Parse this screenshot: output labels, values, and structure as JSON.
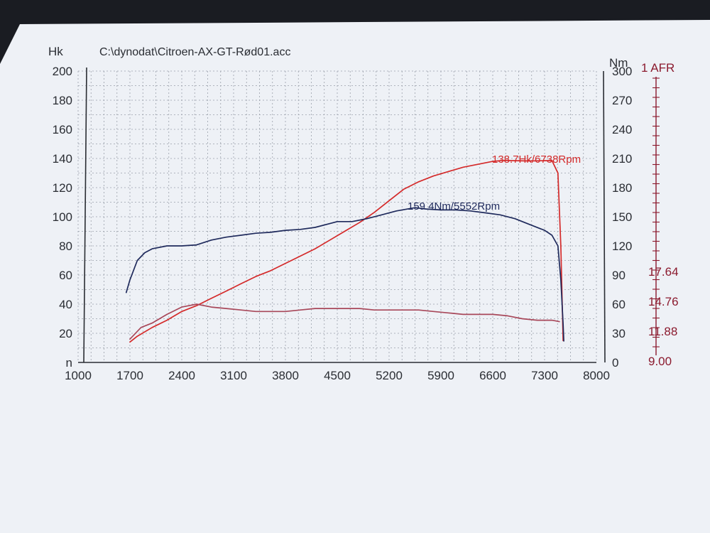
{
  "chart_data": {
    "type": "line",
    "title": "C:\\dynodat\\Citroen-AX-GT-Rød01.acc",
    "x": {
      "min": 1000,
      "max": 8000,
      "ticks": [
        1000,
        1700,
        2400,
        3100,
        3800,
        4500,
        5200,
        5900,
        6600,
        7300,
        8000
      ],
      "tick_labels": [
        "1000",
        "1700",
        "2400",
        "3100",
        "3800",
        "4500",
        "5200",
        "5900",
        "6600",
        "7300",
        "8000"
      ]
    },
    "y_left": {
      "label": "Hk",
      "min": 0,
      "max": 200,
      "ticks": [
        0,
        20,
        40,
        60,
        80,
        100,
        120,
        140,
        160,
        180,
        200
      ],
      "tick_labels": [
        "n",
        "20",
        "40",
        "60",
        "80",
        "100",
        "120",
        "140",
        "160",
        "180",
        "200"
      ]
    },
    "y_right": {
      "label": "Nm",
      "min": 0,
      "max": 300,
      "ticks": [
        0,
        30,
        60,
        90,
        120,
        150,
        180,
        210,
        240,
        270,
        300
      ],
      "tick_labels": [
        "0",
        "30",
        "60",
        "90",
        "120",
        "150",
        "180",
        "210",
        "240",
        "270",
        "300"
      ]
    },
    "y_afr": {
      "label": "1 AFR",
      "tick_labels": [
        "17.64",
        "14.76",
        "11.88",
        "9.00"
      ]
    },
    "grid": true,
    "series": [
      {
        "axis": "left",
        "unit": "Hk",
        "color": "#d42a2a",
        "points": [
          [
            1700,
            14
          ],
          [
            1800,
            18
          ],
          [
            2000,
            24
          ],
          [
            2200,
            29
          ],
          [
            2400,
            35
          ],
          [
            2600,
            39
          ],
          [
            2800,
            44
          ],
          [
            3000,
            49
          ],
          [
            3200,
            54
          ],
          [
            3400,
            59
          ],
          [
            3600,
            63
          ],
          [
            3800,
            68
          ],
          [
            4000,
            73
          ],
          [
            4200,
            78
          ],
          [
            4400,
            84
          ],
          [
            4600,
            90
          ],
          [
            4800,
            96
          ],
          [
            5000,
            103
          ],
          [
            5200,
            111
          ],
          [
            5400,
            119
          ],
          [
            5600,
            124
          ],
          [
            5800,
            128
          ],
          [
            6000,
            131
          ],
          [
            6200,
            134
          ],
          [
            6400,
            136
          ],
          [
            6600,
            138
          ],
          [
            6738,
            138.7
          ],
          [
            6900,
            138.5
          ],
          [
            7100,
            138.3
          ],
          [
            7300,
            138.5
          ],
          [
            7400,
            138.6
          ],
          [
            7480,
            130
          ],
          [
            7520,
            80
          ],
          [
            7550,
            15
          ]
        ]
      },
      {
        "axis": "right",
        "unit": "Nm",
        "color": "#1f2a5c",
        "points": [
          [
            1650,
            72
          ],
          [
            1700,
            85
          ],
          [
            1800,
            105
          ],
          [
            1900,
            113
          ],
          [
            2000,
            117
          ],
          [
            2200,
            120
          ],
          [
            2400,
            120
          ],
          [
            2600,
            121
          ],
          [
            2800,
            126
          ],
          [
            3000,
            129
          ],
          [
            3200,
            131
          ],
          [
            3400,
            133
          ],
          [
            3600,
            134
          ],
          [
            3800,
            136
          ],
          [
            4000,
            137
          ],
          [
            4200,
            139
          ],
          [
            4400,
            143
          ],
          [
            4500,
            145
          ],
          [
            4700,
            145
          ],
          [
            4900,
            148
          ],
          [
            5100,
            152
          ],
          [
            5300,
            156
          ],
          [
            5552,
            159.4
          ],
          [
            5700,
            158
          ],
          [
            5900,
            157
          ],
          [
            6100,
            157
          ],
          [
            6300,
            156
          ],
          [
            6500,
            154
          ],
          [
            6700,
            152
          ],
          [
            6900,
            148
          ],
          [
            7100,
            142
          ],
          [
            7300,
            136
          ],
          [
            7400,
            131
          ],
          [
            7480,
            120
          ],
          [
            7520,
            85
          ],
          [
            7550,
            40
          ],
          [
            7560,
            22
          ]
        ]
      },
      {
        "axis": "left",
        "unit": "AFR",
        "color": "#a8485a",
        "points": [
          [
            1700,
            16
          ],
          [
            1850,
            24
          ],
          [
            2000,
            27
          ],
          [
            2200,
            33
          ],
          [
            2400,
            38
          ],
          [
            2600,
            40
          ],
          [
            2800,
            38
          ],
          [
            3000,
            37
          ],
          [
            3200,
            36
          ],
          [
            3400,
            35
          ],
          [
            3600,
            35
          ],
          [
            3800,
            35
          ],
          [
            4000,
            36
          ],
          [
            4200,
            37
          ],
          [
            4400,
            37
          ],
          [
            4600,
            37
          ],
          [
            4800,
            37
          ],
          [
            5000,
            36
          ],
          [
            5200,
            36
          ],
          [
            5400,
            36
          ],
          [
            5600,
            36
          ],
          [
            5800,
            35
          ],
          [
            6000,
            34
          ],
          [
            6200,
            33
          ],
          [
            6400,
            33
          ],
          [
            6600,
            33
          ],
          [
            6800,
            32
          ],
          [
            7000,
            30
          ],
          [
            7200,
            29
          ],
          [
            7400,
            29
          ],
          [
            7500,
            28
          ]
        ]
      }
    ],
    "annotations": [
      {
        "text": "138.7Hk/6738Rpm",
        "color": "#d42a2a"
      },
      {
        "text": "159.4Nm/5552Rpm",
        "color": "#1f2a5c"
      }
    ]
  }
}
